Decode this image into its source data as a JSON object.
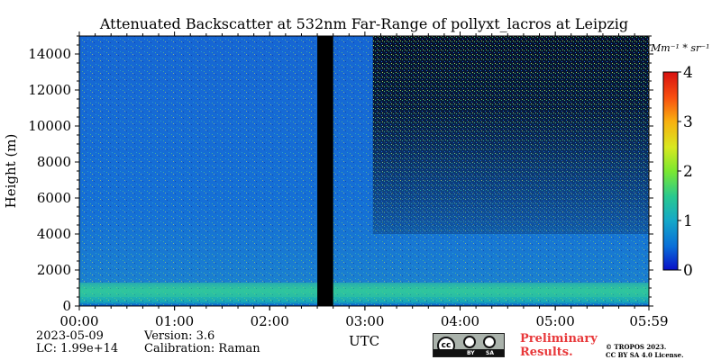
{
  "chart_data": {
    "type": "heatmap",
    "title": "Attenuated Backscatter at 532nm Far-Range of pollyxt_lacros at Leipzig",
    "xlabel": "UTC",
    "ylabel": "Height (m)",
    "xlim": [
      0,
      359
    ],
    "ylim": [
      0,
      15000
    ],
    "x_ticks": [
      {
        "value": 0,
        "label": "00:00"
      },
      {
        "value": 60,
        "label": "01:00"
      },
      {
        "value": 120,
        "label": "02:00"
      },
      {
        "value": 180,
        "label": "03:00"
      },
      {
        "value": 240,
        "label": "04:00"
      },
      {
        "value": 300,
        "label": "05:00"
      },
      {
        "value": 359,
        "label": "05:59"
      }
    ],
    "y_ticks": [
      {
        "value": 0,
        "label": "0"
      },
      {
        "value": 2000,
        "label": "2000"
      },
      {
        "value": 4000,
        "label": "4000"
      },
      {
        "value": 6000,
        "label": "6000"
      },
      {
        "value": 8000,
        "label": "8000"
      },
      {
        "value": 10000,
        "label": "10000"
      },
      {
        "value": 12000,
        "label": "12000"
      },
      {
        "value": 14000,
        "label": "14000"
      }
    ],
    "colorbar": {
      "range": [
        0,
        4
      ],
      "ticks": [
        "0",
        "1",
        "2",
        "3",
        "4"
      ],
      "unit": "Mm⁻¹ * sr⁻¹",
      "colormap": [
        "#0a10c8",
        "#0a6fd8",
        "#15a8c8",
        "#28c890",
        "#7be830",
        "#d8e820",
        "#f8b010",
        "#f85010",
        "#d81010"
      ]
    },
    "no_data_gap": {
      "start": 150,
      "end": 160
    },
    "noisy_region_start": 185,
    "aerosol_layer_top": 1300
  },
  "meta": {
    "date": "2023-05-09",
    "lc": "LC: 1.99e+14",
    "version": "Version: 3.6",
    "calibration": "Calibration: Raman"
  },
  "license": {
    "badge_cc": "cc",
    "badge_by": "BY",
    "badge_sa": "SA",
    "preliminary_line1": "Preliminary",
    "preliminary_line2": "Results.",
    "tropos_line1": "© TROPOS 2023.",
    "tropos_line2": "CC BY SA 4.0 License."
  }
}
